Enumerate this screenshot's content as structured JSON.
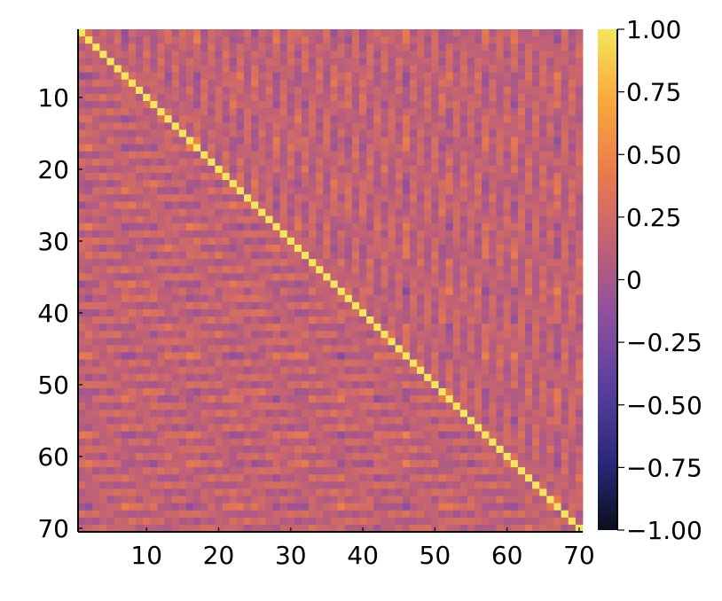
{
  "chart_data": {
    "type": "heatmap",
    "title": "",
    "xlabel": "",
    "ylabel": "",
    "n": 70,
    "xlim": [
      0.5,
      70.5
    ],
    "ylim": [
      0.5,
      70.5
    ],
    "y_axis_reversed": true,
    "x_ticks": [
      10,
      20,
      30,
      40,
      50,
      60,
      70
    ],
    "y_ticks": [
      10,
      20,
      30,
      40,
      50,
      60,
      70
    ],
    "diagonal_value": 1.0,
    "off_diagonal_range_approx": [
      -0.45,
      0.6
    ],
    "colormap": "thermal",
    "colormap_stops": [
      "#0b0e1f",
      "#2a2a7c",
      "#5c3f9d",
      "#8e4f9e",
      "#c06176",
      "#ea7a4d",
      "#f9a93c",
      "#f4e65a"
    ],
    "colorbar": {
      "range": [
        -1.0,
        1.0
      ],
      "ticks": [
        1.0,
        0.75,
        0.5,
        0.25,
        0,
        -0.25,
        -0.5,
        -0.75,
        -1.0
      ],
      "tick_labels": [
        "1.00",
        "0.75",
        "0.50",
        "0.25",
        "0",
        "−0.25",
        "−0.50",
        "−0.75",
        "−1.00"
      ]
    },
    "grid": false,
    "legend": "colorbar-right"
  }
}
